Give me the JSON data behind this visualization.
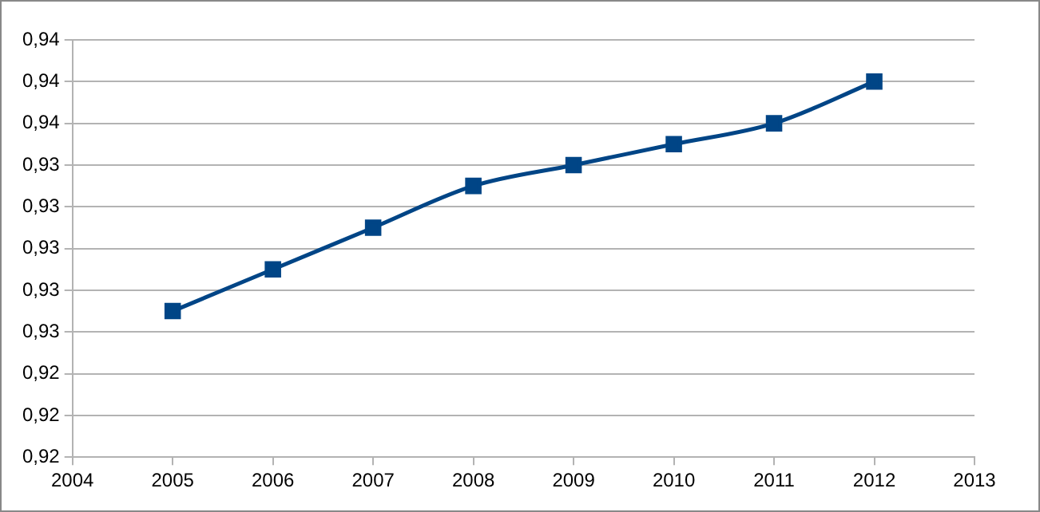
{
  "chart_data": {
    "type": "line",
    "x": [
      2005,
      2006,
      2007,
      2008,
      2009,
      2010,
      2011,
      2012
    ],
    "series": [
      {
        "color": "#004586",
        "values": [
          0.927,
          0.929,
          0.931,
          0.933,
          0.934,
          0.935,
          0.936,
          0.938
        ]
      }
    ],
    "xlim": [
      2004,
      2013
    ],
    "xticks": [
      2004,
      2005,
      2006,
      2007,
      2008,
      2009,
      2010,
      2011,
      2012,
      2013
    ],
    "ylim": [
      0.92,
      0.94
    ],
    "yticks": [
      {
        "value": 0.92,
        "label": "0,92"
      },
      {
        "value": 0.922,
        "label": "0,92"
      },
      {
        "value": 0.924,
        "label": "0,92"
      },
      {
        "value": 0.926,
        "label": "0,93"
      },
      {
        "value": 0.928,
        "label": "0,93"
      },
      {
        "value": 0.93,
        "label": "0,93"
      },
      {
        "value": 0.932,
        "label": "0,93"
      },
      {
        "value": 0.934,
        "label": "0,93"
      },
      {
        "value": 0.936,
        "label": "0,94"
      },
      {
        "value": 0.938,
        "label": "0,94"
      },
      {
        "value": 0.94,
        "label": "0,94"
      }
    ],
    "grid": "y",
    "legend": false,
    "marker": "square",
    "line_style": "solid"
  }
}
